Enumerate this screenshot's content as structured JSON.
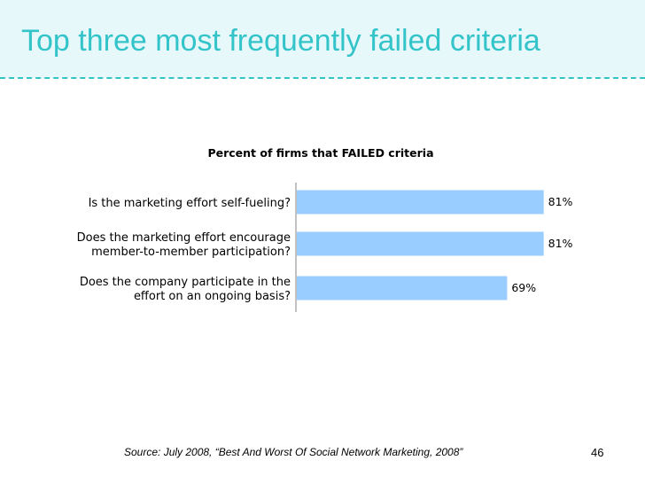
{
  "slide": {
    "title": "Top three most frequently failed criteria",
    "source": "Source: July 2008, “Best And Worst Of Social Network Marketing, 2008”",
    "page_number": "46",
    "accent_color": "#33c4ca"
  },
  "chart_data": {
    "type": "bar",
    "orientation": "horizontal",
    "title": "Percent of firms that FAILED criteria",
    "categories": [
      [
        "Is the marketing effort self-fueling?"
      ],
      [
        "Does the marketing effort encourage",
        "member-to-member participation?"
      ],
      [
        "Does the company participate in the",
        "effort on an ongoing basis?"
      ]
    ],
    "values": [
      81,
      81,
      69
    ],
    "value_labels": [
      "81%",
      "81%",
      "69%"
    ],
    "xlim": [
      0,
      100
    ],
    "bar_color": "#99ccff",
    "grid": false,
    "legend": false
  }
}
